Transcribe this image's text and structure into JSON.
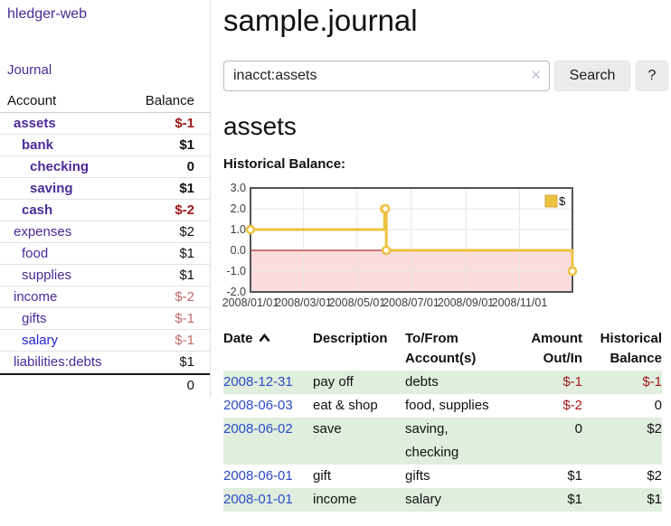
{
  "app": {
    "title": "hledger-web"
  },
  "sidebar": {
    "journal_label": "Journal",
    "account_header": "Account",
    "balance_header": "Balance",
    "accounts": [
      {
        "name": "assets",
        "balance": "$-1"
      },
      {
        "name": "bank",
        "balance": "$1"
      },
      {
        "name": "checking",
        "balance": "0"
      },
      {
        "name": "saving",
        "balance": "$1"
      },
      {
        "name": "cash",
        "balance": "$-2"
      },
      {
        "name": "expenses",
        "balance": "$2"
      },
      {
        "name": "food",
        "balance": "$1"
      },
      {
        "name": "supplies",
        "balance": "$1"
      },
      {
        "name": "income",
        "balance": "$-2"
      },
      {
        "name": "gifts",
        "balance": "$-1"
      },
      {
        "name": "salary",
        "balance": "$-1"
      },
      {
        "name": "liabilities:debts",
        "balance": "$1"
      }
    ],
    "total_balance": "0"
  },
  "header": {
    "title": "sample.journal"
  },
  "search": {
    "value": "inacct:assets",
    "clear_label": "✕",
    "button_label": "Search",
    "help_label": "?"
  },
  "account_page": {
    "title": "assets",
    "chart_title": "Historical Balance:"
  },
  "chart_data": {
    "type": "line",
    "title": "Historical Balance:",
    "step": true,
    "series": [
      {
        "name": "$",
        "color": "#edc240",
        "points": [
          [
            "2008-01-01",
            1
          ],
          [
            "2008-06-01",
            2
          ],
          [
            "2008-06-02",
            2
          ],
          [
            "2008-06-03",
            0
          ],
          [
            "2008-12-31",
            -1
          ]
        ]
      }
    ],
    "x_range": [
      "2008-01-01",
      "2008-12-31"
    ],
    "y_range": [
      -2,
      3
    ],
    "x_ticks": [
      {
        "value": "2008-01-01",
        "label": "2008/01/01"
      },
      {
        "value": "2008-03-01",
        "label": "2008/03/01"
      },
      {
        "value": "2008-05-01",
        "label": "2008/05/01"
      },
      {
        "value": "2008-07-01",
        "label": "2008/07/01"
      },
      {
        "value": "2008-09-01",
        "label": "2008/09/01"
      },
      {
        "value": "2008-11-01",
        "label": "2008/11/01"
      }
    ],
    "y_ticks": [
      {
        "value": 3,
        "label": "3.0"
      },
      {
        "value": 2,
        "label": "2.0"
      },
      {
        "value": 1,
        "label": "1.0"
      },
      {
        "value": 0,
        "label": "0.0"
      },
      {
        "value": -1,
        "label": "-1.0"
      },
      {
        "value": -2,
        "label": "-2.0"
      }
    ],
    "legend": {
      "label": "$",
      "position": "top-right"
    },
    "colors": {
      "line": "#edc240",
      "negative_region": "#fcdcdc",
      "zero_line": "#990000",
      "grid": "#e7e7e7",
      "border": "#545454"
    }
  },
  "register": {
    "headers": {
      "date": "Date",
      "description": "Description",
      "tofrom": "To/From Account(s)",
      "amount": "Amount Out/In",
      "historical": "Historical Balance"
    },
    "rows": [
      {
        "date": "2008-12-31",
        "description": "pay off",
        "accounts": "debts",
        "amount": "$-1",
        "balance": "$-1"
      },
      {
        "date": "2008-06-03",
        "description": "eat & shop",
        "accounts": "food, supplies",
        "amount": "$-2",
        "balance": "0"
      },
      {
        "date": "2008-06-02",
        "description": "save",
        "accounts": "saving,\nchecking",
        "amount": "0",
        "balance": "$2"
      },
      {
        "date": "2008-06-01",
        "description": "gift",
        "accounts": "gifts",
        "amount": "$1",
        "balance": "$2"
      },
      {
        "date": "2008-01-01",
        "description": "income",
        "accounts": "salary",
        "amount": "$1",
        "balance": "$1"
      }
    ]
  }
}
